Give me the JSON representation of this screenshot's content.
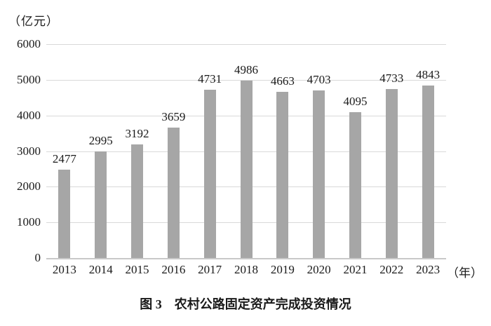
{
  "figure": {
    "unit_label": "（亿元）",
    "x_axis_unit_label": "（年）",
    "caption": "图 3　农村公路固定资产完成投资情况"
  },
  "colors": {
    "bar": "#a6a6a6",
    "gridline": "#d9d9d9",
    "baseline": "#c9c9c9",
    "text": "#1a1a1a",
    "background": "#ffffff"
  },
  "chart_data": {
    "type": "bar",
    "title": "图 3　农村公路固定资产完成投资情况",
    "categories": [
      "2013",
      "2014",
      "2015",
      "2016",
      "2017",
      "2018",
      "2019",
      "2020",
      "2021",
      "2022",
      "2023"
    ],
    "values": [
      2477,
      2995,
      3192,
      3659,
      4731,
      4986,
      4663,
      4703,
      4095,
      4733,
      4843
    ],
    "data_labels_visible": true,
    "xlabel": "（年）",
    "ylabel": "（亿元）",
    "ylim": [
      0,
      6000
    ],
    "ytick_step": 1000,
    "yticks": [
      0,
      1000,
      2000,
      3000,
      4000,
      5000,
      6000
    ],
    "grid": true,
    "legend": "none",
    "bar_color": "#a6a6a6"
  }
}
